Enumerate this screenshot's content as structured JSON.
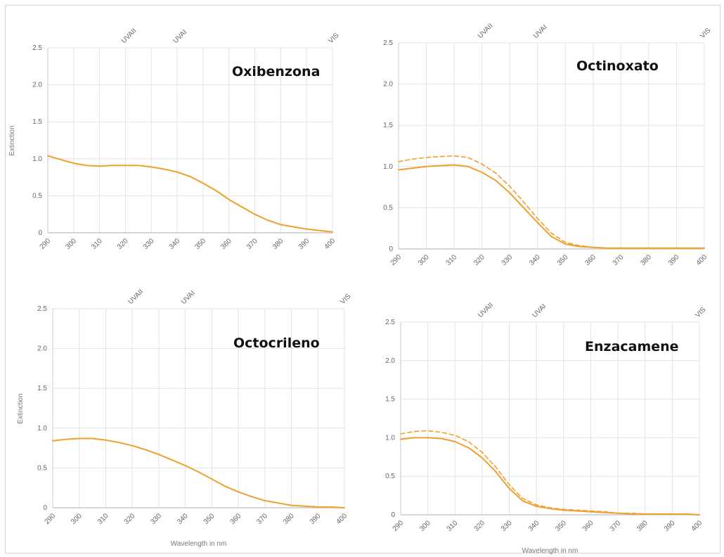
{
  "colors": {
    "series": "#f0a02a",
    "grid": "#e3e3e3",
    "axis": "#c9c9c9",
    "text": "#666666"
  },
  "chart_data": [
    {
      "type": "line",
      "title": "Oxibenzona",
      "xlabel": "",
      "ylabel": "Extinction",
      "xlim": [
        290,
        400
      ],
      "ylim": [
        0,
        2.5
      ],
      "grid": true,
      "x_ticks": [
        "290",
        "300",
        "310",
        "320",
        "330",
        "340",
        "350",
        "360",
        "370",
        "380",
        "390",
        "400"
      ],
      "y_ticks": [
        "0",
        "0.5",
        "1.0",
        "1.5",
        "2.0",
        "2.5"
      ],
      "bands": [
        {
          "label": "UVAII",
          "x": 320
        },
        {
          "label": "UVAI",
          "x": 340
        },
        {
          "label": "VIS",
          "x": 400
        }
      ],
      "series": [
        {
          "style": "solid",
          "x": [
            290,
            295,
            300,
            305,
            310,
            315,
            320,
            325,
            330,
            335,
            340,
            345,
            350,
            355,
            360,
            365,
            370,
            375,
            380,
            385,
            390,
            395,
            400
          ],
          "y": [
            1.04,
            0.99,
            0.94,
            0.91,
            0.9,
            0.91,
            0.91,
            0.91,
            0.89,
            0.86,
            0.82,
            0.76,
            0.67,
            0.57,
            0.45,
            0.35,
            0.25,
            0.17,
            0.11,
            0.08,
            0.05,
            0.03,
            0.01
          ]
        }
      ]
    },
    {
      "type": "line",
      "title": "Octinoxato",
      "xlabel": "",
      "ylabel": "",
      "xlim": [
        290,
        400
      ],
      "ylim": [
        0,
        2.5
      ],
      "grid": true,
      "x_ticks": [
        "290",
        "300",
        "310",
        "320",
        "330",
        "340",
        "350",
        "360",
        "370",
        "380",
        "390",
        "400"
      ],
      "y_ticks": [
        "0",
        "0.5",
        "1.0",
        "1.5",
        "2.0",
        "2.5"
      ],
      "bands": [
        {
          "label": "UVAII",
          "x": 320
        },
        {
          "label": "UVAI",
          "x": 340
        },
        {
          "label": "VIS",
          "x": 400
        }
      ],
      "series": [
        {
          "style": "solid",
          "x": [
            290,
            295,
            300,
            305,
            310,
            315,
            320,
            325,
            330,
            335,
            340,
            345,
            350,
            355,
            360,
            365,
            370,
            375,
            380,
            385,
            390,
            395,
            400
          ],
          "y": [
            0.96,
            0.98,
            1.0,
            1.01,
            1.02,
            1.0,
            0.93,
            0.83,
            0.68,
            0.5,
            0.32,
            0.15,
            0.06,
            0.03,
            0.02,
            0.01,
            0.01,
            0.01,
            0.01,
            0.01,
            0.01,
            0.01,
            0.01
          ]
        },
        {
          "style": "dashed",
          "x": [
            290,
            295,
            300,
            305,
            310,
            315,
            320,
            325,
            330,
            335,
            340,
            345,
            350,
            355,
            360,
            365,
            370,
            375,
            380,
            385,
            390,
            395,
            400
          ],
          "y": [
            1.06,
            1.09,
            1.11,
            1.12,
            1.13,
            1.11,
            1.03,
            0.92,
            0.76,
            0.57,
            0.37,
            0.19,
            0.08,
            0.04,
            0.02,
            0.01,
            0.01,
            0.01,
            0.01,
            0.01,
            0.01,
            0.01,
            0.01
          ]
        }
      ]
    },
    {
      "type": "line",
      "title": "Octocrileno",
      "xlabel": "Wavelength in nm",
      "ylabel": "Extinction",
      "xlim": [
        290,
        400
      ],
      "ylim": [
        0,
        2.5
      ],
      "grid": true,
      "x_ticks": [
        "290",
        "300",
        "310",
        "320",
        "330",
        "340",
        "350",
        "360",
        "370",
        "380",
        "390",
        "400"
      ],
      "y_ticks": [
        "0",
        "0.5",
        "1.0",
        "1.5",
        "2.0",
        "2.5"
      ],
      "bands": [
        {
          "label": "UVAII",
          "x": 320
        },
        {
          "label": "UVAI",
          "x": 340
        },
        {
          "label": "VIS",
          "x": 400
        }
      ],
      "series": [
        {
          "style": "solid",
          "x": [
            290,
            295,
            300,
            305,
            310,
            315,
            320,
            325,
            330,
            335,
            340,
            345,
            350,
            355,
            360,
            365,
            370,
            375,
            380,
            385,
            390,
            395,
            400
          ],
          "y": [
            0.84,
            0.86,
            0.87,
            0.87,
            0.85,
            0.82,
            0.78,
            0.73,
            0.67,
            0.6,
            0.53,
            0.45,
            0.36,
            0.27,
            0.2,
            0.14,
            0.09,
            0.06,
            0.03,
            0.02,
            0.01,
            0.01,
            0.0
          ]
        }
      ]
    },
    {
      "type": "line",
      "title": "Enzacamene",
      "xlabel": "Wavelength in nm",
      "ylabel": "",
      "xlim": [
        290,
        400
      ],
      "ylim": [
        0,
        2.5
      ],
      "grid": true,
      "x_ticks": [
        "290",
        "300",
        "310",
        "320",
        "330",
        "340",
        "350",
        "360",
        "370",
        "380",
        "390",
        "400"
      ],
      "y_ticks": [
        "0",
        "0.5",
        "1.0",
        "1.5",
        "2.0",
        "2.5"
      ],
      "bands": [
        {
          "label": "UVAII",
          "x": 320
        },
        {
          "label": "UVAI",
          "x": 340
        },
        {
          "label": "VIS",
          "x": 400
        }
      ],
      "series": [
        {
          "style": "solid",
          "x": [
            290,
            295,
            300,
            305,
            310,
            315,
            320,
            325,
            330,
            335,
            340,
            345,
            350,
            355,
            360,
            365,
            370,
            375,
            380,
            385,
            390,
            395,
            400
          ],
          "y": [
            0.98,
            1.0,
            1.0,
            0.99,
            0.95,
            0.87,
            0.74,
            0.56,
            0.34,
            0.18,
            0.11,
            0.08,
            0.06,
            0.05,
            0.04,
            0.03,
            0.02,
            0.01,
            0.01,
            0.01,
            0.01,
            0.01,
            0.0
          ]
        },
        {
          "style": "dashed",
          "x": [
            290,
            295,
            300,
            305,
            310,
            315,
            320,
            325,
            330,
            335,
            340,
            345,
            350,
            355,
            360,
            365,
            370,
            375,
            380,
            385,
            390,
            395,
            400
          ],
          "y": [
            1.05,
            1.08,
            1.09,
            1.07,
            1.03,
            0.95,
            0.81,
            0.62,
            0.39,
            0.21,
            0.13,
            0.09,
            0.07,
            0.06,
            0.05,
            0.04,
            0.02,
            0.02,
            0.01,
            0.01,
            0.01,
            0.01,
            0.0
          ]
        }
      ]
    }
  ]
}
